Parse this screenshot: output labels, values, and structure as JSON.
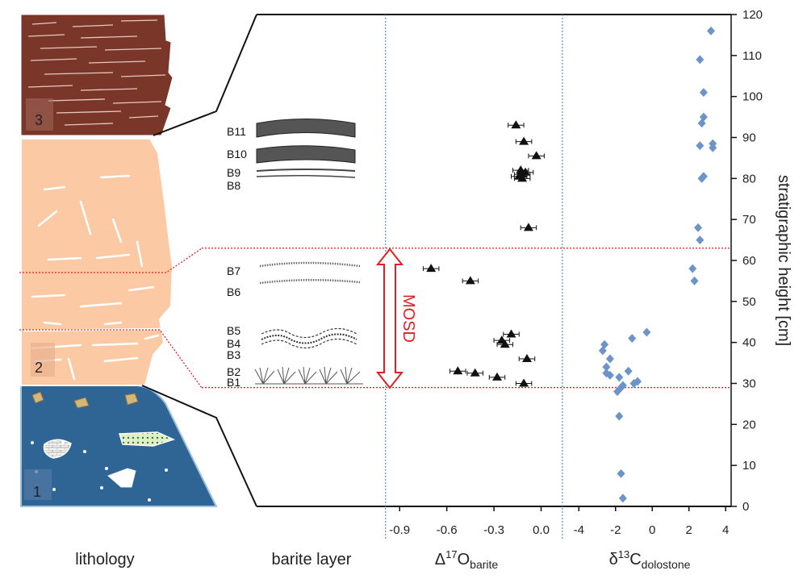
{
  "labels": {
    "lithology": "lithology",
    "barite_layer": "barite layer",
    "x1_label": "Δ17Obarite",
    "x2_label": "δ13Cdolostone",
    "y_label": "stratigraphic height [cm]",
    "mosd": "MOSD"
  },
  "lithology_units": [
    "1",
    "2",
    "3"
  ],
  "barite_layers": [
    "B1",
    "B2",
    "B3",
    "B4",
    "B5",
    "B6",
    "B7",
    "B8",
    "B9",
    "B10",
    "B11"
  ],
  "chart_data": {
    "type": "scatter",
    "y_axis": {
      "label": "stratigraphic height [cm]",
      "range": [
        0,
        120
      ],
      "ticks": [
        "0",
        "10",
        "20",
        "30",
        "40",
        "50",
        "60",
        "70",
        "80",
        "90",
        "100",
        "110",
        "120"
      ],
      "position": "right"
    },
    "panels": [
      {
        "xlabel": "Δ17Obarite",
        "xlim": [
          -1.05,
          0.1
        ],
        "ticks": [
          "-0.9",
          "-0.6",
          "-0.3",
          "0.0"
        ],
        "marker": "triangle",
        "color": "#111111",
        "points": [
          {
            "x": -0.11,
            "y": 30
          },
          {
            "x": -0.28,
            "y": 31.5
          },
          {
            "x": -0.42,
            "y": 32.5
          },
          {
            "x": -0.53,
            "y": 33
          },
          {
            "x": -0.09,
            "y": 36
          },
          {
            "x": -0.23,
            "y": 39.5
          },
          {
            "x": -0.25,
            "y": 40.5
          },
          {
            "x": -0.19,
            "y": 42
          },
          {
            "x": -0.7,
            "y": 58
          },
          {
            "x": -0.45,
            "y": 55
          },
          {
            "x": -0.08,
            "y": 68
          },
          {
            "x": -0.12,
            "y": 80
          },
          {
            "x": -0.14,
            "y": 80.5
          },
          {
            "x": -0.12,
            "y": 81
          },
          {
            "x": -0.1,
            "y": 81.5
          },
          {
            "x": -0.13,
            "y": 82
          },
          {
            "x": -0.03,
            "y": 85.5
          },
          {
            "x": -0.11,
            "y": 89
          },
          {
            "x": -0.16,
            "y": 93
          }
        ],
        "x_error": 0.05
      },
      {
        "xlabel": "δ13Cdolostone",
        "xlim": [
          -5.2,
          4.3
        ],
        "ticks": [
          "-4",
          "-2",
          "0",
          "2",
          "4"
        ],
        "marker": "diamond",
        "color": "#6d93cb",
        "points": [
          {
            "x": -1.6,
            "y": 2
          },
          {
            "x": -1.7,
            "y": 8
          },
          {
            "x": -1.8,
            "y": 22
          },
          {
            "x": -1.9,
            "y": 28
          },
          {
            "x": -1.7,
            "y": 29
          },
          {
            "x": -1.6,
            "y": 29.5
          },
          {
            "x": -1.0,
            "y": 30
          },
          {
            "x": -0.8,
            "y": 30.5
          },
          {
            "x": -1.8,
            "y": 31.5
          },
          {
            "x": -2.3,
            "y": 32
          },
          {
            "x": -2.5,
            "y": 32.5
          },
          {
            "x": -1.3,
            "y": 33
          },
          {
            "x": -2.5,
            "y": 34
          },
          {
            "x": -2.3,
            "y": 36
          },
          {
            "x": -2.7,
            "y": 38
          },
          {
            "x": -2.6,
            "y": 39.5
          },
          {
            "x": -1.1,
            "y": 41
          },
          {
            "x": -0.3,
            "y": 42.5
          },
          {
            "x": 2.3,
            "y": 55
          },
          {
            "x": 2.2,
            "y": 58
          },
          {
            "x": 2.6,
            "y": 65
          },
          {
            "x": 2.5,
            "y": 68
          },
          {
            "x": 2.7,
            "y": 80
          },
          {
            "x": 2.8,
            "y": 80.5
          },
          {
            "x": 3.3,
            "y": 87.5
          },
          {
            "x": 2.6,
            "y": 88
          },
          {
            "x": 3.3,
            "y": 88.5
          },
          {
            "x": 2.7,
            "y": 93.5
          },
          {
            "x": 2.8,
            "y": 95
          },
          {
            "x": 2.8,
            "y": 101
          },
          {
            "x": 2.6,
            "y": 109
          },
          {
            "x": 3.2,
            "y": 116
          }
        ]
      }
    ],
    "reference_lines": [
      {
        "panel": 0,
        "x": -0.99,
        "style": "dotted",
        "color": "#5b9bd5"
      },
      {
        "panel": 1,
        "x": -4.9,
        "style": "dotted",
        "color": "#5b9bd5"
      }
    ],
    "horizontal_lines": [
      {
        "y": 29,
        "style": "dotted",
        "color": "#e02020"
      },
      {
        "y": 63,
        "style": "dotted",
        "color": "#e02020"
      }
    ],
    "mosd_interval": [
      29,
      63
    ]
  }
}
